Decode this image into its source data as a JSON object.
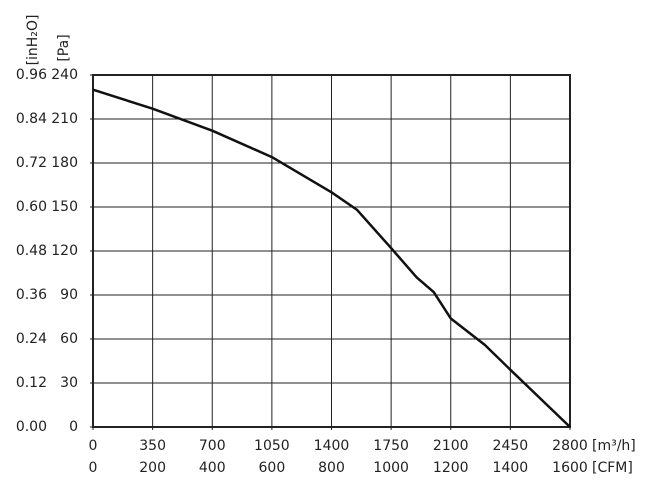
{
  "chart_data": {
    "type": "line",
    "y_label": "[Pa]",
    "y2_label": "[inH₂O]",
    "x_label": "[m³/h]",
    "x2_label": "[CFM]",
    "series": [
      {
        "color": "#111111",
        "x": [
          0,
          350,
          700,
          1050,
          1400,
          1550,
          1750,
          1900,
          2000,
          2100,
          2300,
          2450,
          2800
        ],
        "values": [
          230,
          217,
          202,
          184,
          160,
          148,
          122,
          102,
          92,
          74,
          56,
          39,
          0
        ]
      }
    ],
    "xlim": [
      0,
      2800
    ],
    "xticks": [
      0,
      350,
      700,
      1050,
      1400,
      1750,
      2100,
      2450,
      2800
    ],
    "x2lim": [
      0,
      1600
    ],
    "x2ticks": [
      0,
      200,
      400,
      600,
      800,
      1000,
      1200,
      1400,
      1600
    ],
    "ylim": [
      0,
      240
    ],
    "yticks": [
      0,
      30,
      60,
      90,
      120,
      150,
      180,
      210,
      240
    ],
    "y2lim": [
      0,
      0.96
    ],
    "y2ticks": [
      {
        "value": 0,
        "label": "0.00"
      },
      0.12,
      0.24,
      0.36,
      0.48,
      {
        "value": 0.6,
        "label": "0.60"
      },
      0.72,
      0.84,
      0.96
    ],
    "grid": true
  }
}
